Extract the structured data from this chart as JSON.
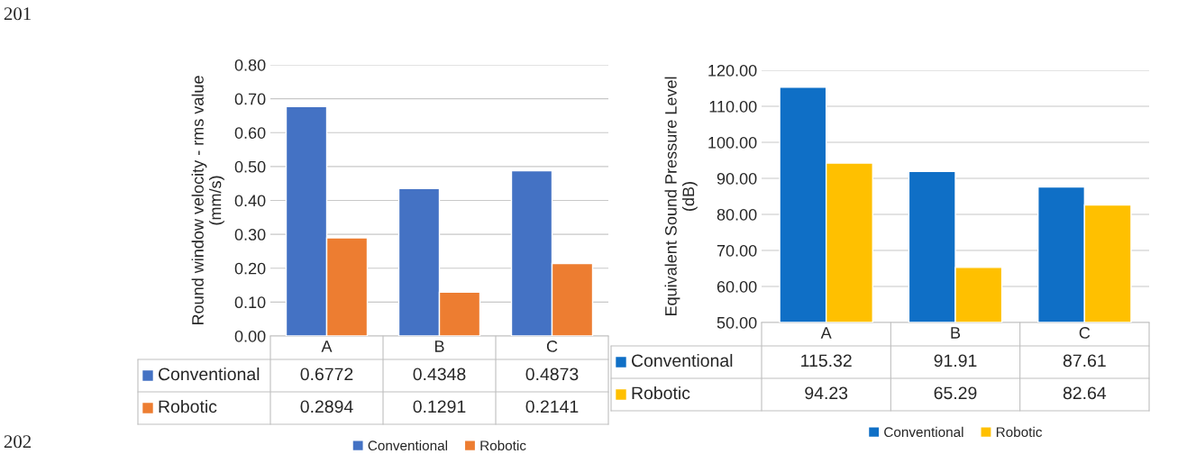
{
  "chart_data": [
    {
      "type": "bar",
      "ylabel": "Round window velocity - rms value\n(mm/s)",
      "categories": [
        "A",
        "B",
        "C"
      ],
      "series": [
        {
          "name": "Conventional",
          "color": "#4472c4",
          "values": [
            0.6772,
            0.4348,
            0.4873
          ]
        },
        {
          "name": "Robotic",
          "color": "#ed7d31",
          "values": [
            0.2894,
            0.1291,
            0.2141
          ]
        }
      ],
      "ylim": [
        0,
        0.8
      ],
      "yticks": [
        {
          "value": 0,
          "label": "0.00"
        },
        {
          "value": 0.1,
          "label": "0.10"
        },
        {
          "value": 0.2,
          "label": "0.20"
        },
        {
          "value": 0.3,
          "label": "0.30"
        },
        {
          "value": 0.4,
          "label": "0.40"
        },
        {
          "value": 0.5,
          "label": "0.50"
        },
        {
          "value": 0.6,
          "label": "0.60"
        },
        {
          "value": 0.7,
          "label": "0.70"
        },
        {
          "value": 0.8,
          "label": "0.80"
        }
      ],
      "grid": "y",
      "legend": "bottom",
      "data_labels": true,
      "annotations": [
        "201",
        "202"
      ]
    },
    {
      "type": "bar",
      "ylabel": "Equivalent Sound Pressure Level\n(dB)",
      "categories": [
        "A",
        "B",
        "C"
      ],
      "series": [
        {
          "name": "Conventional",
          "color": "#0f6fc6",
          "values": [
            115.32,
            91.91,
            87.61
          ]
        },
        {
          "name": "Robotic",
          "color": "#ffc000",
          "values": [
            94.23,
            65.29,
            82.64
          ]
        }
      ],
      "ylim": [
        50,
        120
      ],
      "yticks": [
        {
          "value": 50,
          "label": "50.00"
        },
        {
          "value": 60,
          "label": "60.00"
        },
        {
          "value": 70,
          "label": "70.00"
        },
        {
          "value": 80,
          "label": "80.00"
        },
        {
          "value": 90,
          "label": "90.00"
        },
        {
          "value": 100,
          "label": "100.00"
        },
        {
          "value": 110,
          "label": "110.00"
        },
        {
          "value": 120,
          "label": "120.00"
        }
      ],
      "grid": "y",
      "legend": "bottom",
      "data_labels": true
    }
  ]
}
